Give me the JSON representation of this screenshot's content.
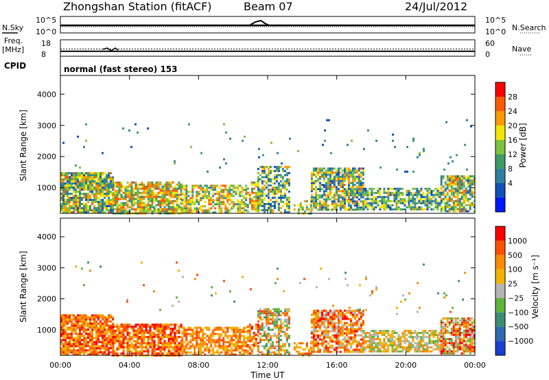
{
  "header": {
    "station": "Zhongshan Station (fitACF)",
    "beam": "Beam 07",
    "date": "24/Jul/2012"
  },
  "status_panels": {
    "nsky_label": "N.Sky",
    "nsearch_label": "N.Search",
    "freq_label_1": "Freq.",
    "freq_label_2": "[MHz]",
    "nave_label": "Nave",
    "cpid_label": "CPID",
    "cpid_text": "normal (fast stereo) 153",
    "noise_ticks_left": [
      "10^5",
      "10^0"
    ],
    "noise_ticks_right": [
      "10^5",
      "10^0"
    ],
    "freq_ticks": [
      "18",
      "8"
    ],
    "nave_ticks": [
      "60",
      "0"
    ],
    "freq_mhz": 12.4,
    "nave": 18
  },
  "chart_data": [
    {
      "type": "heatmap",
      "name": "power",
      "xlabel": "",
      "ylabel": "Slant Range [km]",
      "x_ticks": [
        "00:00",
        "04:00",
        "08:00",
        "12:00",
        "16:00",
        "20:00",
        "00:00"
      ],
      "y_ticks": [
        "1000",
        "2000",
        "3000",
        "4000"
      ],
      "y_values": [
        1000,
        2000,
        3000,
        4000
      ],
      "xlim": [
        0,
        24
      ],
      "ylim": [
        180,
        4600
      ],
      "colorbar": {
        "label": "Power [dB]",
        "ticks": [
          "28",
          "24",
          "20",
          "16",
          "12",
          "8",
          "4"
        ],
        "range": [
          0,
          32
        ],
        "colors": [
          "#0018ff",
          "#1050b8",
          "#2f7fa0",
          "#3e9b68",
          "#7bc33a",
          "#f2e600",
          "#fb9a00",
          "#ff5a00",
          "#ff0000"
        ]
      },
      "patches": [
        {
          "t0": 0.0,
          "t1": 3.0,
          "r0": 200,
          "r1": 1500,
          "dens": 0.85,
          "v0": 6,
          "v1": 26
        },
        {
          "t0": 3.0,
          "t1": 7.0,
          "r0": 200,
          "r1": 1200,
          "dens": 0.8,
          "v0": 10,
          "v1": 28
        },
        {
          "t0": 7.0,
          "t1": 10.8,
          "r0": 220,
          "r1": 1100,
          "dens": 0.7,
          "v0": 8,
          "v1": 26
        },
        {
          "t0": 10.8,
          "t1": 11.4,
          "r0": 250,
          "r1": 1200,
          "dens": 0.65,
          "v0": 8,
          "v1": 28
        },
        {
          "t0": 11.4,
          "t1": 13.2,
          "r0": 200,
          "r1": 1700,
          "dens": 0.6,
          "v0": 4,
          "v1": 24
        },
        {
          "t0": 13.5,
          "t1": 14.5,
          "r0": 200,
          "r1": 600,
          "dens": 0.5,
          "v0": 10,
          "v1": 24
        },
        {
          "t0": 14.5,
          "t1": 17.5,
          "r0": 300,
          "r1": 1650,
          "dens": 0.75,
          "v0": 4,
          "v1": 26
        },
        {
          "t0": 17.5,
          "t1": 22.0,
          "r0": 300,
          "r1": 1000,
          "dens": 0.7,
          "v0": 4,
          "v1": 22
        },
        {
          "t0": 22.0,
          "t1": 24.0,
          "r0": 250,
          "r1": 1400,
          "dens": 0.75,
          "v0": 6,
          "v1": 26
        },
        {
          "t0": 0.0,
          "t1": 24.0,
          "r0": 1500,
          "r1": 3200,
          "dens": 0.012,
          "v0": 4,
          "v1": 16
        }
      ]
    },
    {
      "type": "heatmap",
      "name": "velocity",
      "xlabel": "Time UT",
      "ylabel": "Slant Range [km]",
      "x_ticks": [
        "00:00",
        "04:00",
        "08:00",
        "12:00",
        "16:00",
        "20:00",
        "00:00"
      ],
      "y_ticks": [
        "1000",
        "2000",
        "3000",
        "4000"
      ],
      "y_values": [
        1000,
        2000,
        3000,
        4000
      ],
      "xlim": [
        0,
        24
      ],
      "ylim": [
        180,
        4600
      ],
      "colorbar": {
        "label": "Velocity [m s⁻¹]",
        "ticks": [
          "1000",
          "500",
          "100",
          "25",
          "−25",
          "−100",
          "−500",
          "−1000"
        ],
        "colors": [
          "#1a3fcf",
          "#2d6ab0",
          "#3c8e72",
          "#5fb43c",
          "#b4b4b4",
          "#f0b400",
          "#fb8c00",
          "#ff5000",
          "#ff0000"
        ]
      },
      "patches": [
        {
          "t0": 0.0,
          "t1": 3.0,
          "r0": 200,
          "r1": 1500,
          "dens": 0.85,
          "v0": 5,
          "v1": 8
        },
        {
          "t0": 3.0,
          "t1": 7.0,
          "r0": 200,
          "r1": 1200,
          "dens": 0.8,
          "v0": 5,
          "v1": 8
        },
        {
          "t0": 7.0,
          "t1": 10.8,
          "r0": 220,
          "r1": 1100,
          "dens": 0.7,
          "v0": 5,
          "v1": 7
        },
        {
          "t0": 10.8,
          "t1": 11.4,
          "r0": 250,
          "r1": 1200,
          "dens": 0.65,
          "v0": 5,
          "v1": 8
        },
        {
          "t0": 11.4,
          "t1": 13.2,
          "r0": 200,
          "r1": 1700,
          "dens": 0.6,
          "v0": 2,
          "v1": 7
        },
        {
          "t0": 13.5,
          "t1": 14.5,
          "r0": 200,
          "r1": 600,
          "dens": 0.5,
          "v0": 5,
          "v1": 7
        },
        {
          "t0": 14.5,
          "t1": 17.5,
          "r0": 300,
          "r1": 1650,
          "dens": 0.75,
          "v0": 4,
          "v1": 8
        },
        {
          "t0": 17.5,
          "t1": 22.0,
          "r0": 300,
          "r1": 1000,
          "dens": 0.7,
          "v0": 3,
          "v1": 6
        },
        {
          "t0": 22.0,
          "t1": 24.0,
          "r0": 250,
          "r1": 1400,
          "dens": 0.75,
          "v0": 3,
          "v1": 8
        },
        {
          "t0": 0.0,
          "t1": 24.0,
          "r0": 1500,
          "r1": 3200,
          "dens": 0.012,
          "v0": 2,
          "v1": 7
        }
      ]
    }
  ]
}
